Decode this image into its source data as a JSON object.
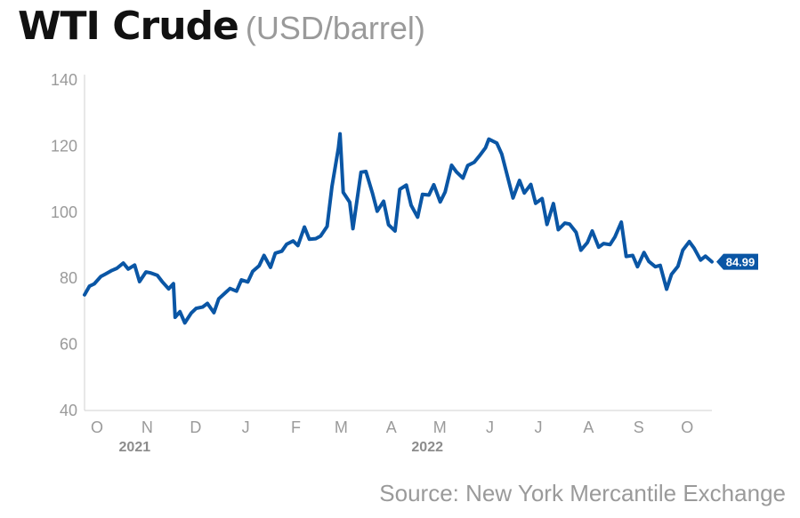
{
  "title": "WTI Crude",
  "subtitle": "(USD/barrel)",
  "source": "Source: New York Mercantile Exchange",
  "colors": {
    "line": "#0a56a5",
    "axis": "#d0d0d0",
    "label": "#9a9a9a"
  },
  "chart_data": {
    "type": "line",
    "title": "WTI Crude",
    "ylabel": "",
    "xlabel": "",
    "ylim": [
      40,
      140
    ],
    "yticks": [
      40,
      60,
      80,
      100,
      120,
      140
    ],
    "xlim": [
      "2021-10-01",
      "2022-10-24"
    ],
    "x_ticks": [
      {
        "label": "O",
        "date": "2021-10-01"
      },
      {
        "label": "N",
        "date": "2021-11-01"
      },
      {
        "label": "D",
        "date": "2021-12-01"
      },
      {
        "label": "J",
        "date": "2022-01-01"
      },
      {
        "label": "F",
        "date": "2022-02-01"
      },
      {
        "label": "M",
        "date": "2022-03-01"
      },
      {
        "label": "A",
        "date": "2022-04-01"
      },
      {
        "label": "M",
        "date": "2022-05-01"
      },
      {
        "label": "J",
        "date": "2022-06-01"
      },
      {
        "label": "J",
        "date": "2022-07-01"
      },
      {
        "label": "A",
        "date": "2022-08-01"
      },
      {
        "label": "S",
        "date": "2022-09-01"
      },
      {
        "label": "O",
        "date": "2022-10-01"
      }
    ],
    "year_labels": [
      {
        "label": "2021",
        "date": "2021-11-01"
      },
      {
        "label": "2022",
        "date": "2022-05-01"
      }
    ],
    "grid": false,
    "last_value_label": "84.99",
    "series": [
      {
        "x": [
          "2021-10-01",
          "2021-10-04",
          "2021-10-07",
          "2021-10-11",
          "2021-10-14",
          "2021-10-18",
          "2021-10-21",
          "2021-10-25",
          "2021-10-28",
          "2021-11-01",
          "2021-11-04",
          "2021-11-08",
          "2021-11-11",
          "2021-11-15",
          "2021-11-18",
          "2021-11-22",
          "2021-11-25",
          "2021-11-26",
          "2021-11-29",
          "2021-12-02",
          "2021-12-06",
          "2021-12-09",
          "2021-12-13",
          "2021-12-16",
          "2021-12-20",
          "2021-12-23",
          "2021-12-27",
          "2021-12-30",
          "2022-01-03",
          "2022-01-06",
          "2022-01-10",
          "2022-01-13",
          "2022-01-17",
          "2022-01-20",
          "2022-01-24",
          "2022-01-27",
          "2022-01-31",
          "2022-02-03",
          "2022-02-07",
          "2022-02-10",
          "2022-02-14",
          "2022-02-17",
          "2022-02-21",
          "2022-02-24",
          "2022-02-28",
          "2022-03-03",
          "2022-03-07",
          "2022-03-08",
          "2022-03-10",
          "2022-03-14",
          "2022-03-16",
          "2022-03-21",
          "2022-03-24",
          "2022-03-28",
          "2022-03-31",
          "2022-04-04",
          "2022-04-07",
          "2022-04-11",
          "2022-04-14",
          "2022-04-18",
          "2022-04-21",
          "2022-04-25",
          "2022-04-28",
          "2022-05-02",
          "2022-05-05",
          "2022-05-09",
          "2022-05-12",
          "2022-05-16",
          "2022-05-19",
          "2022-05-23",
          "2022-05-26",
          "2022-05-30",
          "2022-06-02",
          "2022-06-06",
          "2022-06-08",
          "2022-06-13",
          "2022-06-16",
          "2022-06-20",
          "2022-06-23",
          "2022-06-27",
          "2022-06-30",
          "2022-07-04",
          "2022-07-07",
          "2022-07-11",
          "2022-07-14",
          "2022-07-18",
          "2022-07-21",
          "2022-07-25",
          "2022-07-28",
          "2022-08-01",
          "2022-08-04",
          "2022-08-08",
          "2022-08-11",
          "2022-08-15",
          "2022-08-18",
          "2022-08-22",
          "2022-08-25",
          "2022-08-29",
          "2022-09-01",
          "2022-09-05",
          "2022-09-08",
          "2022-09-12",
          "2022-09-15",
          "2022-09-19",
          "2022-09-22",
          "2022-09-26",
          "2022-09-29",
          "2022-10-03",
          "2022-10-06",
          "2022-10-10",
          "2022-10-13",
          "2022-10-17",
          "2022-10-20",
          "2022-10-24"
        ],
        "y": [
          75.0,
          77.6,
          78.3,
          80.5,
          81.3,
          82.4,
          83.0,
          84.6,
          82.8,
          84.0,
          79.0,
          81.9,
          81.6,
          80.9,
          79.0,
          76.8,
          78.4,
          68.2,
          69.9,
          66.5,
          69.5,
          70.9,
          71.3,
          72.4,
          69.6,
          73.8,
          75.6,
          76.9,
          76.1,
          79.5,
          78.9,
          82.1,
          83.8,
          86.9,
          83.3,
          87.6,
          88.2,
          90.3,
          91.3,
          89.9,
          95.5,
          91.8,
          92.0,
          92.8,
          95.7,
          107.7,
          119.4,
          123.7,
          106.0,
          103.0,
          95.0,
          112.1,
          112.3,
          105.9,
          100.3,
          103.3,
          96.2,
          94.3,
          106.9,
          108.2,
          102.1,
          98.5,
          105.4,
          105.2,
          108.3,
          103.1,
          106.1,
          114.2,
          112.2,
          110.3,
          114.1,
          115.1,
          116.9,
          119.5,
          122.1,
          120.9,
          117.6,
          110.0,
          104.3,
          109.6,
          105.8,
          108.4,
          102.7,
          104.1,
          96.3,
          102.6,
          94.7,
          96.7,
          96.4,
          93.9,
          88.5,
          90.8,
          94.3,
          89.4,
          90.5,
          90.2,
          92.5,
          97.0,
          86.6,
          86.9,
          83.5,
          87.8,
          85.1,
          83.5,
          83.9,
          76.7,
          81.2,
          83.6,
          88.5,
          91.1,
          89.1,
          85.5,
          86.7,
          84.99
        ]
      }
    ]
  }
}
